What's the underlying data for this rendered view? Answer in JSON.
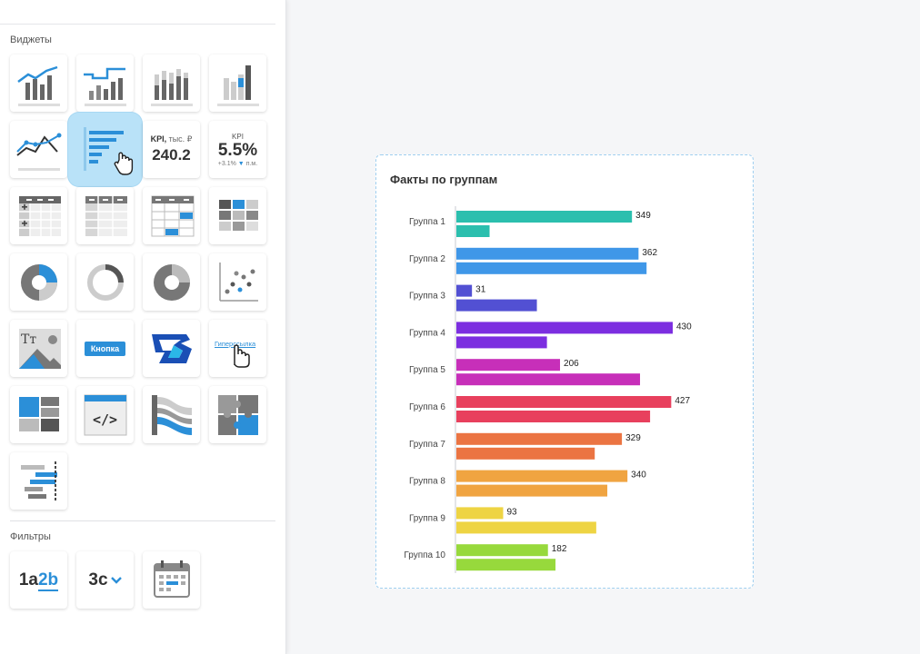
{
  "sidebar": {
    "widgets_title": "Виджеты",
    "filters_title": "Фильтры",
    "widget_tiles": [
      {
        "icon": "line-bar-combo-icon"
      },
      {
        "icon": "step-line-bar-icon"
      },
      {
        "icon": "bar-chart-icon"
      },
      {
        "icon": "stacked-bar-icon"
      },
      {
        "icon": "line-chart-icon"
      },
      {
        "icon": "horizontal-bar-chart-icon",
        "active": true
      },
      {
        "icon": "kpi-number-icon"
      },
      {
        "icon": "kpi-percent-icon"
      },
      {
        "icon": "pivot-table-icon"
      },
      {
        "icon": "table-icon"
      },
      {
        "icon": "table-highlight-icon"
      },
      {
        "icon": "heatmap-icon"
      },
      {
        "icon": "pie-chart-icon"
      },
      {
        "icon": "donut-chart-icon"
      },
      {
        "icon": "gauge-pie-icon"
      },
      {
        "icon": "scatter-plot-icon"
      },
      {
        "icon": "text-image-icon"
      },
      {
        "icon": "button-icon"
      },
      {
        "icon": "logo-icon"
      },
      {
        "icon": "hyperlink-icon"
      },
      {
        "icon": "layout-icon"
      },
      {
        "icon": "code-embed-icon"
      },
      {
        "icon": "sankey-icon"
      },
      {
        "icon": "puzzle-icon"
      },
      {
        "icon": "gantt-chart-icon"
      }
    ],
    "kpi_tile": {
      "label": "KPI,",
      "unit": " тыс. ₽",
      "value": "240.2"
    },
    "kpi_percent_tile": {
      "label": "KPI",
      "value": "5.5%",
      "delta": "+3.1%",
      "period": "п.м."
    },
    "button_tile_label": "Кнопка",
    "hyperlink_tile_label": "Гиперссылка",
    "filter_tiles": [
      {
        "icon": "text-filter-icon",
        "text_a": "1a",
        "text_b": "2b"
      },
      {
        "icon": "dropdown-filter-icon",
        "text": "3c"
      },
      {
        "icon": "calendar-icon"
      }
    ]
  },
  "chart_card": {
    "title": "Факты по группам"
  },
  "chart_data": {
    "type": "bar",
    "orientation": "horizontal",
    "title": "Факты по группам",
    "categories": [
      "Группа 1",
      "Группа 2",
      "Группа 3",
      "Группа 4",
      "Группа 5",
      "Группа 6",
      "Группа 7",
      "Группа  8",
      "Группа 9",
      "Группа  10"
    ],
    "colors": [
      "#2bbfae",
      "#3f97e8",
      "#5250d3",
      "#7c2ee0",
      "#c72fb9",
      "#e8405d",
      "#eb7442",
      "#f0a441",
      "#eed443",
      "#97d93c"
    ],
    "series": [
      {
        "values": [
          349,
          362,
          31,
          430,
          206,
          427,
          329,
          340,
          93,
          182
        ],
        "labels": [
          "349",
          "362",
          "31",
          "430",
          "206",
          "427",
          "329",
          "340",
          "93",
          "182"
        ]
      },
      {
        "values": [
          66,
          378,
          160,
          180,
          365,
          385,
          275,
          300,
          278,
          197
        ]
      }
    ],
    "xlim": [
      0,
      500
    ],
    "grid": false,
    "legend": "none"
  }
}
